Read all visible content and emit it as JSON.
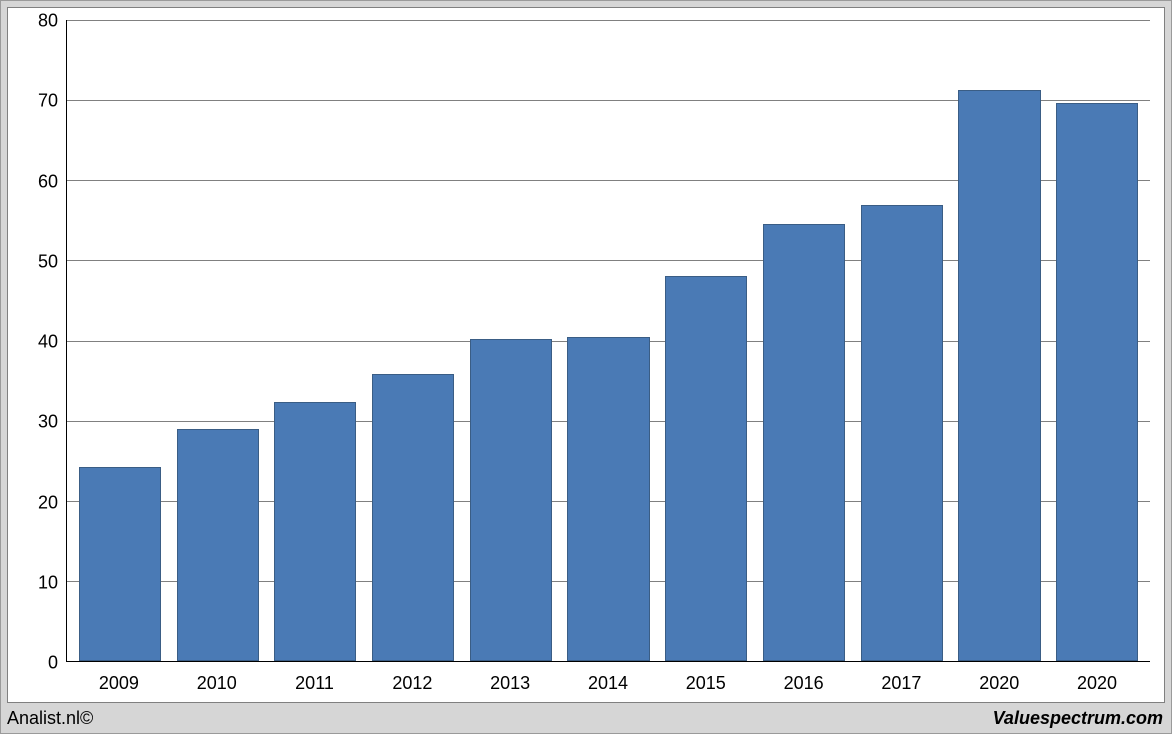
{
  "chart": {
    "type": "bar",
    "categories": [
      "2009",
      "2010",
      "2011",
      "2012",
      "2013",
      "2014",
      "2015",
      "2016",
      "2017",
      "2020",
      "2020"
    ],
    "values": [
      24.2,
      29.0,
      32.3,
      35.8,
      40.2,
      40.4,
      48.1,
      54.6,
      56.9,
      71.3,
      69.6
    ],
    "bar_color": "#4a7ab5",
    "bar_border_color": "#3a5d85",
    "ymin": 0,
    "ymax": 80,
    "ytick_step": 10,
    "yticks": [
      0,
      10,
      20,
      30,
      40,
      50,
      60,
      70,
      80
    ],
    "grid_color": "#808080",
    "background_color": "#ffffff",
    "outer_background": "#d6d6d6",
    "axis_font_size": 18,
    "bar_width_ratio": 0.84
  },
  "footer": {
    "left": "Analist.nl©",
    "right": "Valuespectrum.com"
  }
}
